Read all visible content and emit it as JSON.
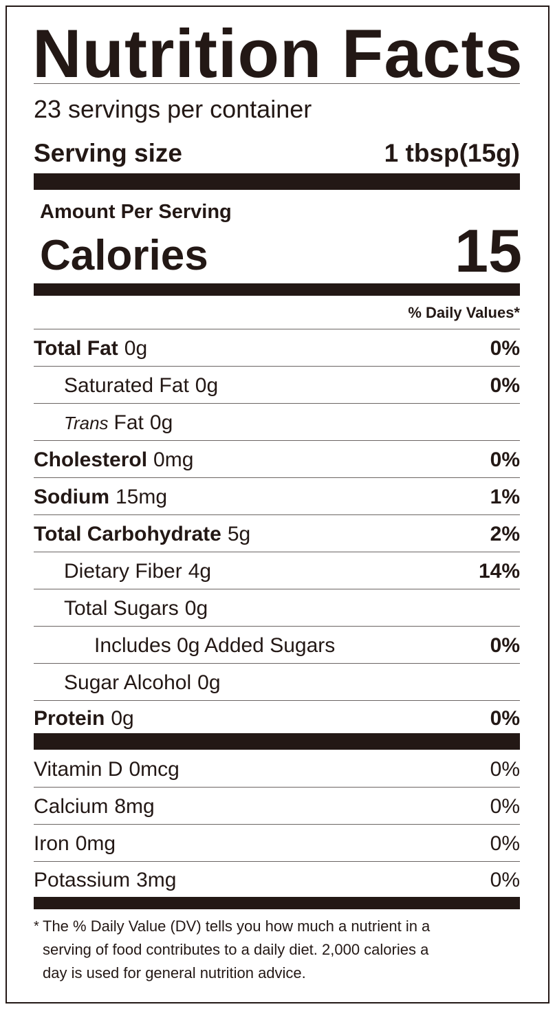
{
  "header": {
    "title": "Nutrition Facts",
    "servings": "23 servings per container",
    "serving_size_label": "Serving size",
    "serving_size": "1 tbsp(15g)"
  },
  "calories": {
    "heading": "Amount Per Serving",
    "label": "Calories",
    "value": 15
  },
  "daily_values_heading": "% Daily Values*",
  "nutrients": [
    {
      "name": "Total Fat",
      "amount": "0g",
      "dv": "0%",
      "level": 0
    },
    {
      "name": "Saturated Fat",
      "amount": "0g",
      "dv": "0%",
      "level": 1
    },
    {
      "name_italic": "Trans",
      "name": "Fat",
      "amount": "0g",
      "level": 1
    },
    {
      "name": "Cholesterol",
      "amount": "0mg",
      "dv": "0%",
      "level": 0
    },
    {
      "name": "Sodium",
      "amount": "15mg",
      "dv": "1%",
      "level": 0
    },
    {
      "name": "Total Carbohydrate",
      "amount": "5g",
      "dv": "2%",
      "level": 0
    },
    {
      "name": "Dietary Fiber",
      "amount": "4g",
      "dv": "14%",
      "level": 1
    },
    {
      "name": "Total Sugars",
      "amount": "0g",
      "level": 1
    },
    {
      "name": "Includes 0g Added Sugars",
      "dv": "0%",
      "level": 2
    },
    {
      "name": "Sugar Alcohol",
      "amount": "0g",
      "level": 1
    },
    {
      "name": "Protein",
      "amount": "0g",
      "dv": "0%",
      "level": 0
    }
  ],
  "vitamins": [
    {
      "name": "Vitamin D",
      "amount": "0mcg",
      "dv": "0%"
    },
    {
      "name": "Calcium",
      "amount": "8mg",
      "dv": "0%"
    },
    {
      "name": "Iron",
      "amount": "0mg",
      "dv": "0%"
    },
    {
      "name": "Potassium",
      "amount": "3mg",
      "dv": "0%"
    }
  ],
  "footnote": {
    "marker": "*",
    "lines": [
      "The % Daily Value (DV) tells you how much a nutrient in a",
      "serving of food contributes to a daily diet. 2,000 calories a",
      "day is used for general nutrition advice."
    ]
  }
}
